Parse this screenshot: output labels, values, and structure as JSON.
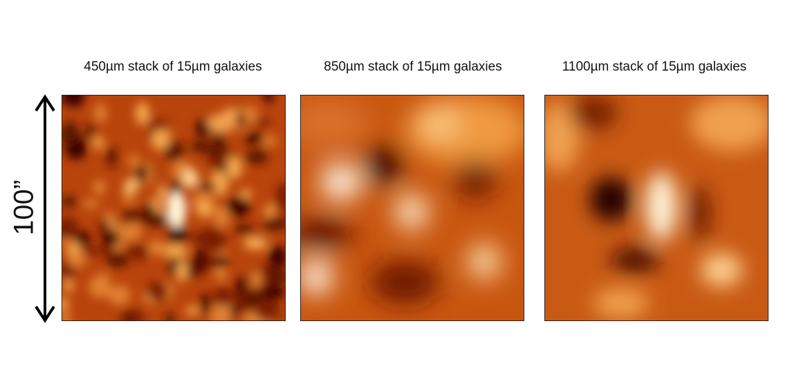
{
  "panels": [
    {
      "title": "450µm stack of 15µm galaxies"
    },
    {
      "title": "850µm stack of 15µm galaxies"
    },
    {
      "title": "1100µm stack of 15µm galaxies"
    }
  ],
  "scale_label": "100”"
}
